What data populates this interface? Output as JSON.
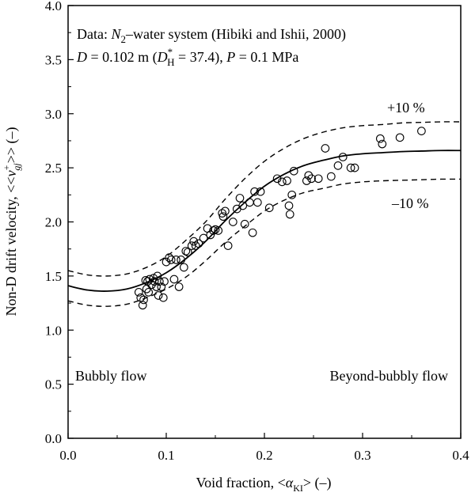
{
  "chart_data": {
    "type": "scatter",
    "title": "",
    "xlabel": {
      "text": "Void fraction, <",
      "symbol": "α",
      "subscript": "KI",
      "suffix": "> (–)"
    },
    "ylabel": {
      "text": "Non-D drift velocity, <<",
      "symbol": "v",
      "superscript": "+",
      "subscript": "gj",
      "suffix": ">> (–)"
    },
    "xlim": [
      0.0,
      0.4
    ],
    "ylim": [
      0.0,
      4.0
    ],
    "xticks": [
      "0.0",
      "0.1",
      "0.2",
      "0.3",
      "0.4"
    ],
    "yticks": [
      "0.0",
      "0.5",
      "1.0",
      "1.5",
      "2.0",
      "2.5",
      "3.0",
      "3.5",
      "4.0"
    ],
    "grid": false,
    "annotations": {
      "line1": {
        "prefix": "Data: ",
        "n2_base": "N",
        "n2_sub": "2",
        "rest": "–water system (Hibiki and Ishii, 2000)"
      },
      "line2": {
        "d_var": "D",
        "d_eq": " = 0.102 m (",
        "dh_base": "D",
        "dh_sup": "*",
        "dh_sub": "H",
        "dh_val": "  =  37.4), ",
        "p_var": "P",
        "p_eq": " = 0.1 MPa"
      },
      "plus10": "+10 %",
      "minus10": "–10 %",
      "bubbly": "Bubbly flow",
      "beyond": "Beyond-bubbly flow"
    },
    "series": [
      {
        "kind": "points",
        "marker": "open-circle",
        "x": [
          0.072,
          0.074,
          0.076,
          0.077,
          0.079,
          0.08,
          0.081,
          0.082,
          0.083,
          0.085,
          0.087,
          0.088,
          0.09,
          0.091,
          0.092,
          0.093,
          0.095,
          0.097,
          0.098,
          0.1,
          0.103,
          0.105,
          0.108,
          0.11,
          0.113,
          0.115,
          0.118,
          0.12,
          0.122,
          0.126,
          0.128,
          0.13,
          0.133,
          0.138,
          0.142,
          0.145,
          0.148,
          0.15,
          0.153,
          0.157,
          0.158,
          0.16,
          0.163,
          0.168,
          0.172,
          0.175,
          0.178,
          0.18,
          0.185,
          0.188,
          0.19,
          0.193,
          0.196,
          0.205,
          0.213,
          0.218,
          0.223,
          0.225,
          0.226,
          0.228,
          0.23,
          0.243,
          0.245,
          0.248,
          0.255,
          0.262,
          0.268,
          0.275,
          0.28,
          0.288,
          0.292,
          0.318,
          0.32,
          0.338,
          0.36
        ],
        "y": [
          1.35,
          1.3,
          1.23,
          1.28,
          1.46,
          1.38,
          1.45,
          1.35,
          1.47,
          1.42,
          1.48,
          1.45,
          1.4,
          1.5,
          1.32,
          1.45,
          1.4,
          1.3,
          1.45,
          1.63,
          1.67,
          1.65,
          1.47,
          1.65,
          1.4,
          1.65,
          1.58,
          1.73,
          1.72,
          1.78,
          1.82,
          1.78,
          1.8,
          1.85,
          1.94,
          1.88,
          1.92,
          1.93,
          1.92,
          2.08,
          2.05,
          2.1,
          1.78,
          2.0,
          2.12,
          2.22,
          2.15,
          1.98,
          2.18,
          1.9,
          2.28,
          2.18,
          2.28,
          2.13,
          2.4,
          2.37,
          2.38,
          2.15,
          2.07,
          2.25,
          2.47,
          2.38,
          2.43,
          2.4,
          2.4,
          2.68,
          2.42,
          2.52,
          2.6,
          2.5,
          2.5,
          2.77,
          2.72,
          2.78,
          2.84
        ]
      },
      {
        "kind": "line",
        "style": "solid",
        "x": [
          0.0,
          0.02,
          0.04,
          0.06,
          0.08,
          0.1,
          0.12,
          0.14,
          0.16,
          0.18,
          0.2,
          0.22,
          0.24,
          0.26,
          0.28,
          0.3,
          0.32,
          0.34,
          0.36,
          0.38,
          0.4
        ],
        "y": [
          1.41,
          1.37,
          1.36,
          1.38,
          1.44,
          1.53,
          1.66,
          1.82,
          2.01,
          2.18,
          2.33,
          2.44,
          2.52,
          2.57,
          2.61,
          2.63,
          2.64,
          2.65,
          2.655,
          2.66,
          2.66
        ]
      },
      {
        "kind": "line",
        "style": "dashed",
        "x": [
          0.0,
          0.02,
          0.04,
          0.06,
          0.08,
          0.1,
          0.12,
          0.14,
          0.16,
          0.18,
          0.2,
          0.22,
          0.24,
          0.26,
          0.28,
          0.3,
          0.32,
          0.34,
          0.36,
          0.38,
          0.4
        ],
        "y": [
          1.55,
          1.51,
          1.5,
          1.52,
          1.58,
          1.68,
          1.83,
          2.0,
          2.21,
          2.4,
          2.56,
          2.68,
          2.77,
          2.83,
          2.87,
          2.89,
          2.9,
          2.915,
          2.92,
          2.925,
          2.925
        ]
      },
      {
        "kind": "line",
        "style": "dashed",
        "x": [
          0.0,
          0.02,
          0.04,
          0.06,
          0.08,
          0.1,
          0.12,
          0.14,
          0.16,
          0.18,
          0.2,
          0.22,
          0.24,
          0.26,
          0.28,
          0.3,
          0.32,
          0.34,
          0.36,
          0.38,
          0.4
        ],
        "y": [
          1.27,
          1.23,
          1.22,
          1.24,
          1.3,
          1.38,
          1.49,
          1.64,
          1.81,
          1.96,
          2.1,
          2.2,
          2.27,
          2.31,
          2.35,
          2.37,
          2.38,
          2.385,
          2.39,
          2.395,
          2.395
        ]
      }
    ]
  }
}
